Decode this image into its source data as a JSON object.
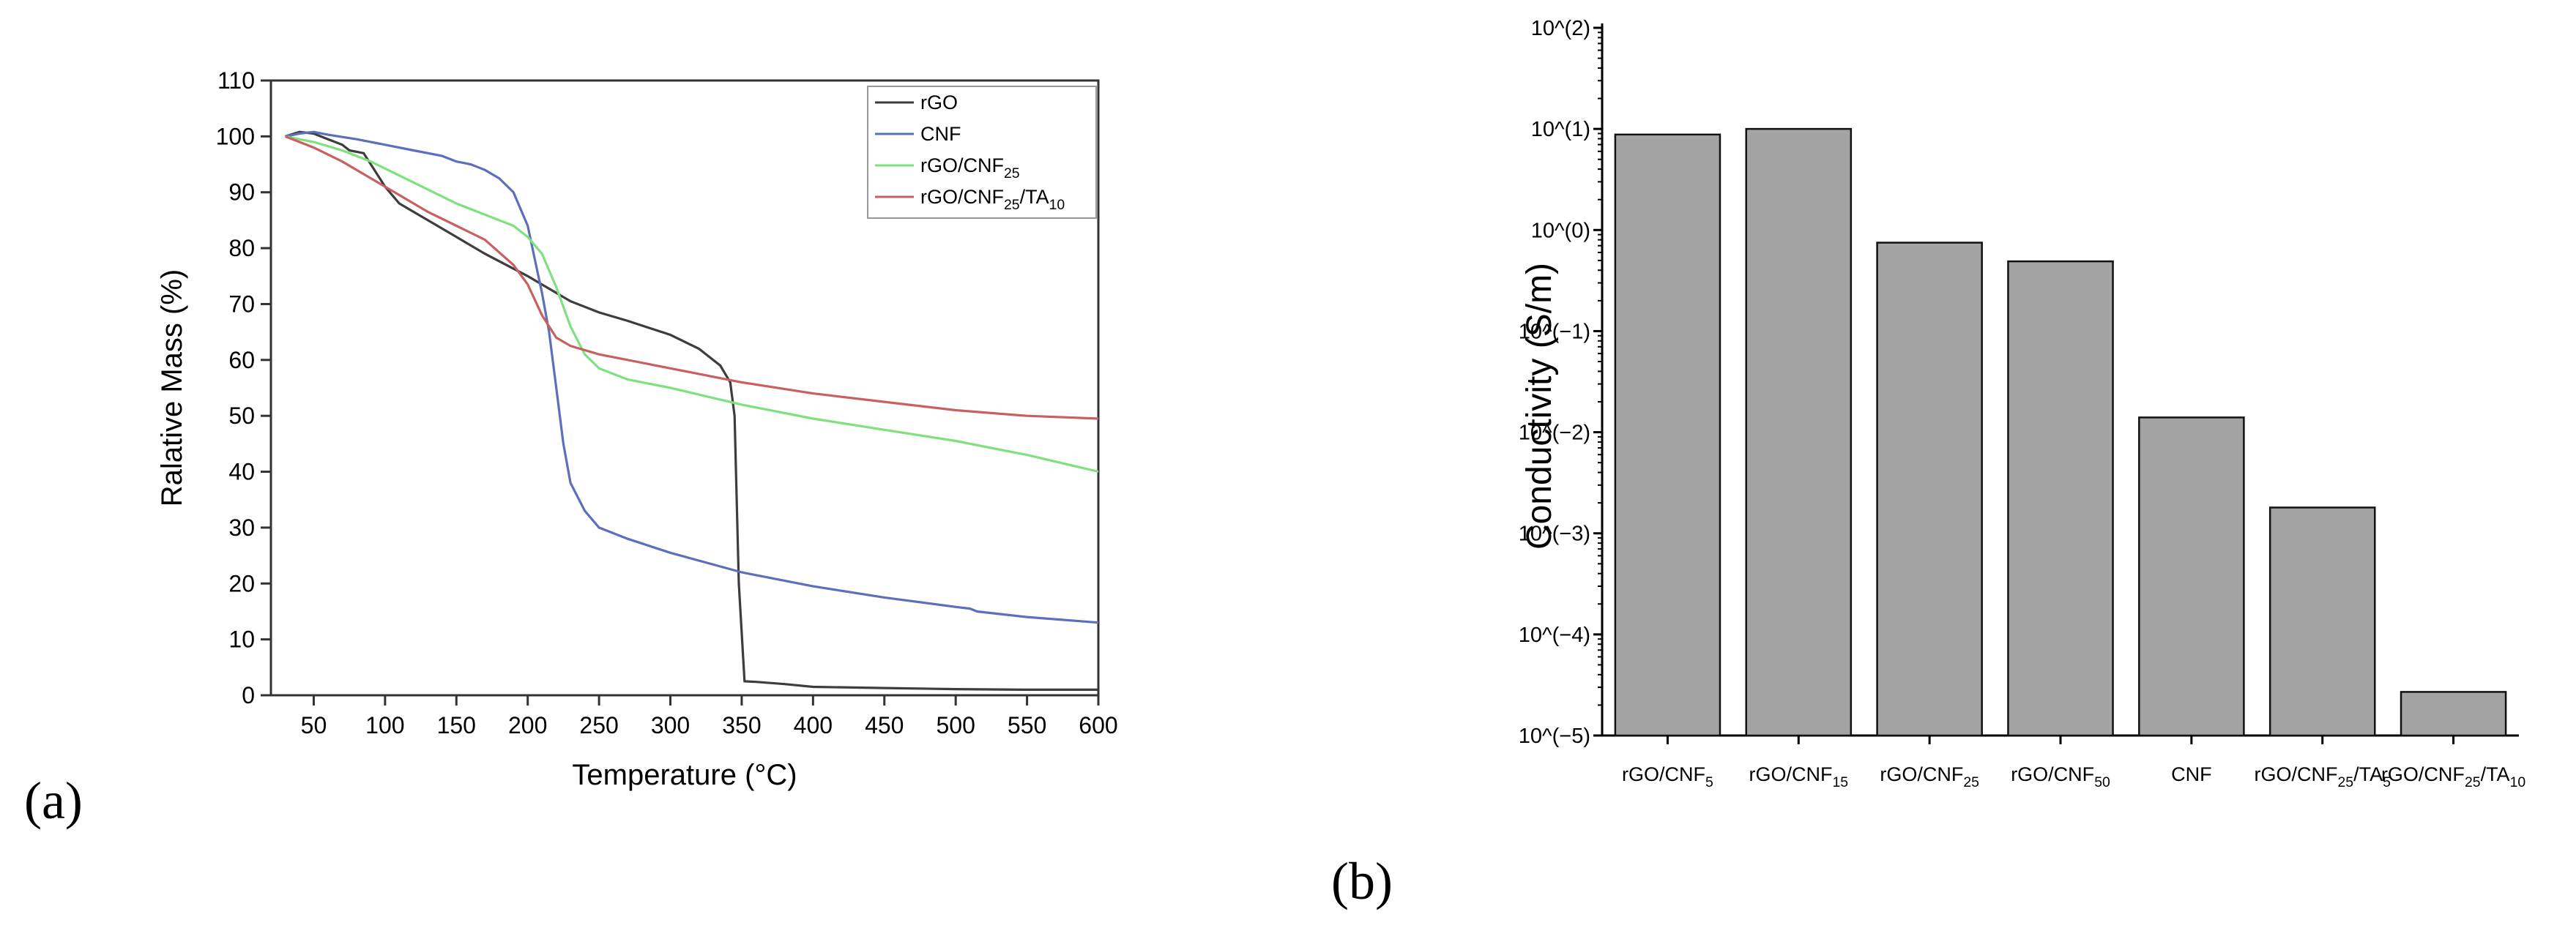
{
  "panels": {
    "a": "(a)",
    "b": "(b)"
  },
  "chart_data": [
    {
      "type": "line",
      "panel": "(a)",
      "title": "",
      "xlabel": "Temperature (°C)",
      "ylabel": "Ralative Mass (%)",
      "xlim": [
        20,
        600
      ],
      "ylim": [
        0,
        110
      ],
      "xticks": [
        50,
        100,
        150,
        200,
        250,
        300,
        350,
        400,
        450,
        500,
        550,
        600
      ],
      "yticks": [
        0,
        10,
        20,
        30,
        40,
        50,
        60,
        70,
        80,
        90,
        100,
        110
      ],
      "legend_position": "top-right",
      "series": [
        {
          "name": "rGO",
          "label_main": "rGO",
          "color": "#3d3d3d",
          "points": [
            [
              30,
              100
            ],
            [
              40,
              100.8
            ],
            [
              50,
              100.5
            ],
            [
              60,
              99.5
            ],
            [
              70,
              98.5
            ],
            [
              75,
              97.5
            ],
            [
              85,
              97
            ],
            [
              90,
              95
            ],
            [
              100,
              91
            ],
            [
              110,
              88
            ],
            [
              130,
              85
            ],
            [
              150,
              82
            ],
            [
              170,
              79
            ],
            [
              200,
              75
            ],
            [
              230,
              70.5
            ],
            [
              250,
              68.5
            ],
            [
              270,
              67
            ],
            [
              300,
              64.5
            ],
            [
              320,
              62
            ],
            [
              335,
              59
            ],
            [
              342,
              56
            ],
            [
              345,
              50
            ],
            [
              348,
              20
            ],
            [
              352,
              2.5
            ],
            [
              360,
              2.4
            ],
            [
              380,
              2
            ],
            [
              400,
              1.5
            ],
            [
              450,
              1.3
            ],
            [
              500,
              1.1
            ],
            [
              550,
              1
            ],
            [
              600,
              1
            ]
          ]
        },
        {
          "name": "CNF",
          "label_main": "CNF",
          "color": "#5b6fbd",
          "points": [
            [
              30,
              100
            ],
            [
              40,
              100.5
            ],
            [
              50,
              100.8
            ],
            [
              60,
              100.3
            ],
            [
              80,
              99.5
            ],
            [
              100,
              98.5
            ],
            [
              120,
              97.5
            ],
            [
              140,
              96.5
            ],
            [
              150,
              95.5
            ],
            [
              160,
              95
            ],
            [
              170,
              94
            ],
            [
              180,
              92.5
            ],
            [
              190,
              90
            ],
            [
              200,
              84
            ],
            [
              205,
              78
            ],
            [
              210,
              72
            ],
            [
              215,
              65
            ],
            [
              220,
              55
            ],
            [
              225,
              45
            ],
            [
              230,
              38
            ],
            [
              240,
              33
            ],
            [
              250,
              30
            ],
            [
              270,
              28
            ],
            [
              300,
              25.5
            ],
            [
              350,
              22
            ],
            [
              400,
              19.5
            ],
            [
              450,
              17.5
            ],
            [
              500,
              15.8
            ],
            [
              510,
              15.5
            ],
            [
              515,
              15
            ],
            [
              550,
              14
            ],
            [
              600,
              13
            ]
          ]
        },
        {
          "name": "rGO/CNF25",
          "label_main": "rGO/CNF",
          "label_sub": "25",
          "color": "#7fe07f",
          "points": [
            [
              30,
              100
            ],
            [
              50,
              99
            ],
            [
              70,
              97.5
            ],
            [
              90,
              95.5
            ],
            [
              110,
              93
            ],
            [
              130,
              90.5
            ],
            [
              150,
              88
            ],
            [
              170,
              86
            ],
            [
              190,
              84
            ],
            [
              200,
              82
            ],
            [
              210,
              79
            ],
            [
              220,
              73
            ],
            [
              230,
              66
            ],
            [
              240,
              61
            ],
            [
              250,
              58.5
            ],
            [
              260,
              57.5
            ],
            [
              270,
              56.5
            ],
            [
              300,
              55
            ],
            [
              350,
              52
            ],
            [
              400,
              49.5
            ],
            [
              450,
              47.5
            ],
            [
              500,
              45.5
            ],
            [
              550,
              43
            ],
            [
              600,
              40
            ]
          ]
        },
        {
          "name": "rGO/CNF25/TA10",
          "label_main": "rGO/CNF",
          "label_sub": "25",
          "label_main2": "/TA",
          "label_sub2": "10",
          "color": "#c96060",
          "points": [
            [
              30,
              100
            ],
            [
              50,
              98
            ],
            [
              70,
              95.5
            ],
            [
              90,
              92.5
            ],
            [
              110,
              89.5
            ],
            [
              130,
              86.5
            ],
            [
              150,
              84
            ],
            [
              170,
              81.5
            ],
            [
              190,
              77
            ],
            [
              200,
              73.5
            ],
            [
              210,
              68
            ],
            [
              220,
              64
            ],
            [
              230,
              62.5
            ],
            [
              250,
              61
            ],
            [
              270,
              60
            ],
            [
              300,
              58.5
            ],
            [
              350,
              56
            ],
            [
              400,
              54
            ],
            [
              450,
              52.5
            ],
            [
              500,
              51
            ],
            [
              550,
              50
            ],
            [
              600,
              49.5
            ]
          ]
        }
      ]
    },
    {
      "type": "bar",
      "panel": "(b)",
      "title": "",
      "xlabel": "",
      "ylabel": "Conductivity (S/m)",
      "yscale": "log",
      "ylim": [
        1e-05,
        100
      ],
      "ytick_labels": [
        "10^(2)",
        "10^(1)",
        "10^(0)",
        "10^(−1)",
        "10^(−2)",
        "10^(−3)",
        "10^(−4)",
        "10^(−5)"
      ],
      "categories": [
        {
          "main": "rGO/CNF",
          "sub": "5"
        },
        {
          "main": "rGO/CNF",
          "sub": "15"
        },
        {
          "main": "rGO/CNF",
          "sub": "25"
        },
        {
          "main": "rGO/CNF",
          "sub": "50"
        },
        {
          "main": "CNF",
          "sub": ""
        },
        {
          "main": "rGO/CNF",
          "sub": "25",
          "main2": "/TA",
          "sub2": "5"
        },
        {
          "main": "rGO/CNF",
          "sub": "25",
          "main2": "/TA",
          "sub2": "10"
        }
      ],
      "values": [
        8.8,
        10,
        0.75,
        0.49,
        0.014,
        0.0018,
        2.7e-05
      ],
      "errors": [
        0,
        0,
        0,
        0,
        0,
        0,
        0
      ],
      "bar_color": "#a3a3a3"
    }
  ]
}
